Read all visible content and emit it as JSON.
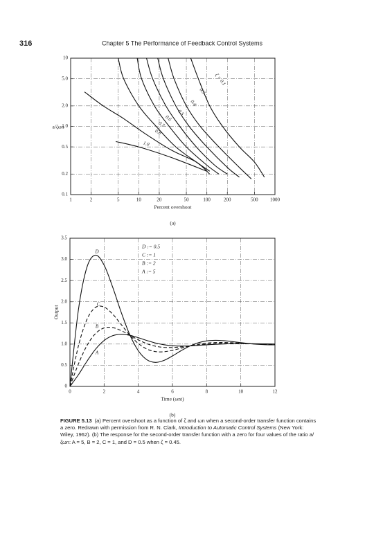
{
  "header": {
    "page_number": "316",
    "title": "Chapter 5   The Performance of Feedback Control Systems"
  },
  "caption": {
    "label": "FIGURE 5.13",
    "text_1": "(a) Percent overshoot as a function of ζ and ωn when a second-order transfer function contains a zero. Redrawn with permission from R. N. Clark, ",
    "book_title": "Introduction to Automatic Control Systems",
    "text_2": " (New York: Wiley, 1962). (b) The response for the second-order transfer function with a zero for four values of the ratio a/ζωn: A = 5, B = 2, C = 1, and D = 0.5 when ζ = 0.45."
  },
  "chart_data": [
    {
      "type": "line",
      "subcaption": "(a)",
      "xlabel": "Percent overshoot",
      "ylabel": "a/ζωn",
      "xscale": "log",
      "yscale": "log",
      "grid": true,
      "color": "#111",
      "xlim": [
        1,
        1000
      ],
      "ylim": [
        0.1,
        10
      ],
      "xticks": [
        1,
        2,
        5,
        10,
        20,
        50,
        100,
        200,
        500,
        1000
      ],
      "yticks": [
        0.1,
        0.2,
        0.5,
        {
          "value": 1,
          "label": "1.0"
        },
        {
          "value": 2,
          "label": "2.0"
        },
        {
          "value": 5,
          "label": "5.0"
        },
        10
      ],
      "series": [
        {
          "name": "ζ = 0.1",
          "x": [
            58,
            75,
            110,
            170,
            300,
            500,
            700
          ],
          "values": [
            10,
            5,
            2,
            1,
            0.5,
            0.3,
            0.18
          ]
        },
        {
          "name": "0.3",
          "x": [
            27,
            33,
            50,
            80,
            150,
            300,
            450
          ],
          "values": [
            10,
            5,
            2,
            1,
            0.5,
            0.25,
            0.17
          ]
        },
        {
          "name": "0.4",
          "x": [
            19,
            23,
            35,
            55,
            100,
            200,
            300
          ],
          "values": [
            10,
            5,
            2,
            1,
            0.5,
            0.25,
            0.18
          ]
        },
        {
          "name": "0.5",
          "x": [
            13,
            16,
            25,
            40,
            70,
            130,
            200
          ],
          "values": [
            10,
            5,
            2,
            1,
            0.5,
            0.27,
            0.2
          ]
        },
        {
          "name": "0.6",
          "x": [
            9.5,
            11,
            17,
            28,
            50,
            100,
            150
          ],
          "values": [
            10,
            5,
            2,
            1,
            0.5,
            0.27,
            0.2
          ]
        },
        {
          "name": "0.7",
          "x": [
            5,
            6,
            10,
            18,
            35,
            70,
            110
          ],
          "values": [
            10,
            5,
            2,
            1,
            0.5,
            0.3,
            0.22
          ]
        },
        {
          "name": "0.8",
          "x": [
            1.6,
            3,
            6,
            12,
            30,
            70,
            110
          ],
          "values": [
            3.2,
            2,
            1.3,
            0.8,
            0.45,
            0.3,
            0.2
          ]
        },
        {
          "name": "1.0",
          "x": [
            4.6,
            10,
            30,
            100
          ],
          "values": [
            0.6,
            0.5,
            0.35,
            0.22
          ]
        }
      ]
    },
    {
      "type": "line",
      "subcaption": "(b)",
      "xlabel": "Time (ωnt)",
      "ylabel": "Output",
      "grid": true,
      "color": "#111",
      "xlim": [
        0,
        12
      ],
      "ylim": [
        0,
        3.5
      ],
      "xticks": [
        0,
        2,
        4,
        6,
        8,
        10,
        12
      ],
      "yticks": [
        0,
        0.5,
        {
          "value": 1,
          "label": "1.0"
        },
        1.5,
        {
          "value": 2,
          "label": "2.0"
        },
        2.5,
        {
          "value": 3,
          "label": "3.0"
        },
        3.5
      ],
      "x": [
        0,
        0.5,
        1,
        1.5,
        2,
        2.5,
        3,
        3.5,
        4,
        4.5,
        5,
        5.5,
        6,
        6.5,
        7,
        7.5,
        8,
        8.5,
        9,
        9.5,
        10,
        10.5,
        11,
        11.5,
        12
      ],
      "series": [
        {
          "name": "A",
          "legend_label": "A := 5",
          "dash": "solid",
          "values": [
            0,
            0.278,
            0.597,
            0.88,
            1.085,
            1.198,
            1.232,
            1.207,
            1.151,
            1.085,
            1.026,
            0.984,
            0.96,
            0.953,
            0.957,
            0.969,
            0.982,
            0.994,
            1.003,
            1.008,
            1.01,
            1.009,
            1.007,
            1.004,
            1.001
          ]
        },
        {
          "name": "B",
          "legend_label": "B := 2",
          "dash": "dashed",
          "values": [
            0,
            0.535,
            0.968,
            1.25,
            1.381,
            1.389,
            1.318,
            1.209,
            1.1,
            1.01,
            0.95,
            0.922,
            0.92,
            0.934,
            0.956,
            0.979,
            0.998,
            1.01,
            1.016,
            1.016,
            1.014,
            1.009,
            1.004,
            1.001,
            0.998
          ]
        },
        {
          "name": "C",
          "legend_label": "C := 1",
          "dash": "dashed",
          "values": [
            0,
            0.964,
            1.586,
            1.867,
            1.875,
            1.708,
            1.462,
            1.214,
            1.014,
            0.883,
            0.823,
            0.819,
            0.853,
            0.903,
            0.954,
            0.996,
            1.023,
            1.036,
            1.037,
            1.031,
            1.02,
            1.01,
            1.001,
            0.995,
            0.992
          ]
        },
        {
          "name": "D",
          "legend_label": "D := 0.5",
          "dash": "solid",
          "values": [
            0,
            1.822,
            2.822,
            3.1,
            2.864,
            2.346,
            1.75,
            1.222,
            0.843,
            0.631,
            0.568,
            0.614,
            0.719,
            0.842,
            0.951,
            1.03,
            1.075,
            1.089,
            1.08,
            1.058,
            1.033,
            1.011,
            0.994,
            0.985,
            0.982
          ]
        }
      ]
    }
  ]
}
